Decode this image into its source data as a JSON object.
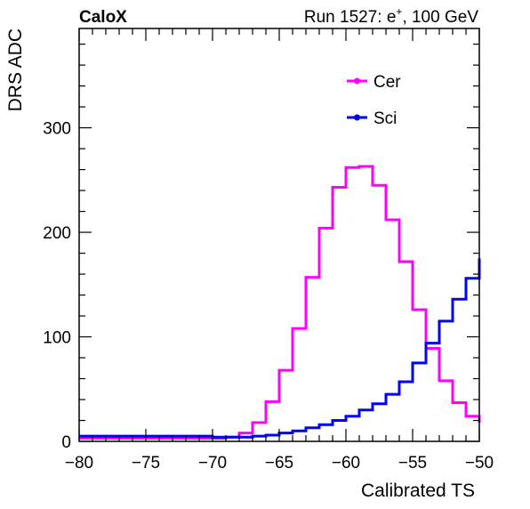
{
  "header": {
    "left": "CaloX",
    "right_prefix": "Run 1527: e",
    "right_superscript": "+",
    "right_suffix": ", 100 GeV"
  },
  "chart_data": {
    "type": "line",
    "style": "step-histogram",
    "xlabel": "Calibrated TS",
    "ylabel": "DRS ADC",
    "xlim": [
      -80,
      -50
    ],
    "ylim": [
      0,
      395
    ],
    "x_ticks": [
      -80,
      -75,
      -70,
      -65,
      -60,
      -55,
      -50
    ],
    "x_tick_labels": [
      "−80",
      "−75",
      "−70",
      "−65",
      "−60",
      "−55",
      "−50"
    ],
    "y_ticks": [
      0,
      100,
      200,
      300
    ],
    "y_tick_labels": [
      "0",
      "100",
      "200",
      "300"
    ],
    "bin_edges": [
      -80,
      -79,
      -78,
      -77,
      -76,
      -75,
      -74,
      -73,
      -72,
      -71,
      -70,
      -69,
      -68,
      -67,
      -66,
      -65,
      -64,
      -63,
      -62,
      -61,
      -60,
      -59,
      -58,
      -57,
      -56,
      -55,
      -54,
      -53,
      -52,
      -51,
      -50
    ],
    "legend_position": "top-right",
    "series": [
      {
        "name": "Cer",
        "color": "#ff00ff",
        "values": [
          3,
          3,
          3,
          3,
          3,
          3,
          3,
          3,
          3,
          3,
          3,
          4,
          8,
          18,
          38,
          68,
          108,
          157,
          204,
          243,
          262,
          263,
          245,
          212,
          172,
          126,
          89,
          58,
          37,
          24,
          18
        ]
      },
      {
        "name": "Sci",
        "color": "#0000ff",
        "values": [
          5,
          5,
          5,
          5,
          5,
          5,
          5,
          5,
          5,
          5,
          4,
          4,
          4,
          5,
          6,
          8,
          10,
          13,
          16,
          20,
          24,
          30,
          36,
          45,
          57,
          75,
          94,
          115,
          136,
          156,
          175
        ]
      }
    ]
  }
}
